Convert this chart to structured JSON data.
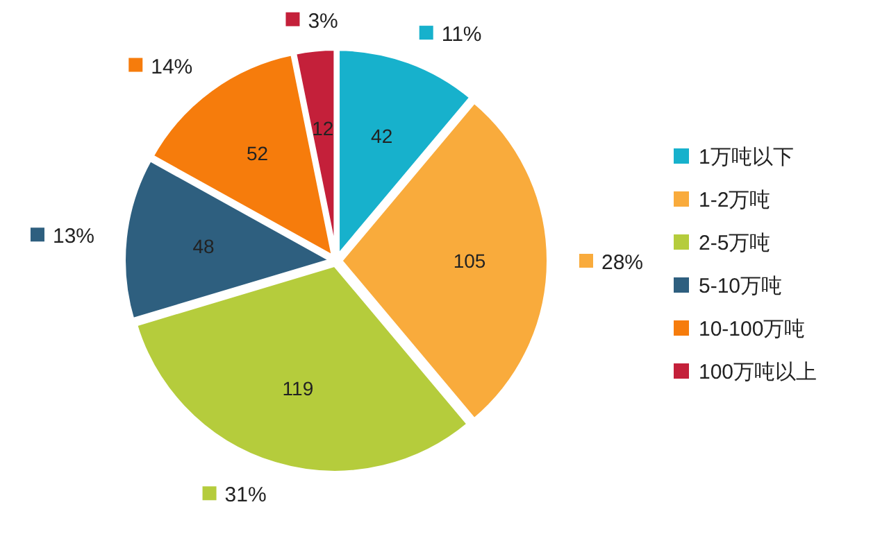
{
  "chart_data": {
    "type": "pie",
    "categories": [
      "1万吨以下",
      "1-2万吨",
      "2-5万吨",
      "5-10万吨",
      "10-100万吨",
      "100万吨以上"
    ],
    "values": [
      42,
      105,
      119,
      48,
      52,
      12
    ],
    "colors": [
      "#17b1cc",
      "#f9ab3c",
      "#b5cc3c",
      "#2e5f7f",
      "#f67c0c",
      "#c4203a"
    ],
    "value_labels": [
      "42",
      "105",
      "119",
      "48",
      "52",
      "12"
    ],
    "annotations": [
      "11%",
      "28%",
      "31%",
      "13%",
      "14%",
      "3%"
    ],
    "legend": "right"
  }
}
